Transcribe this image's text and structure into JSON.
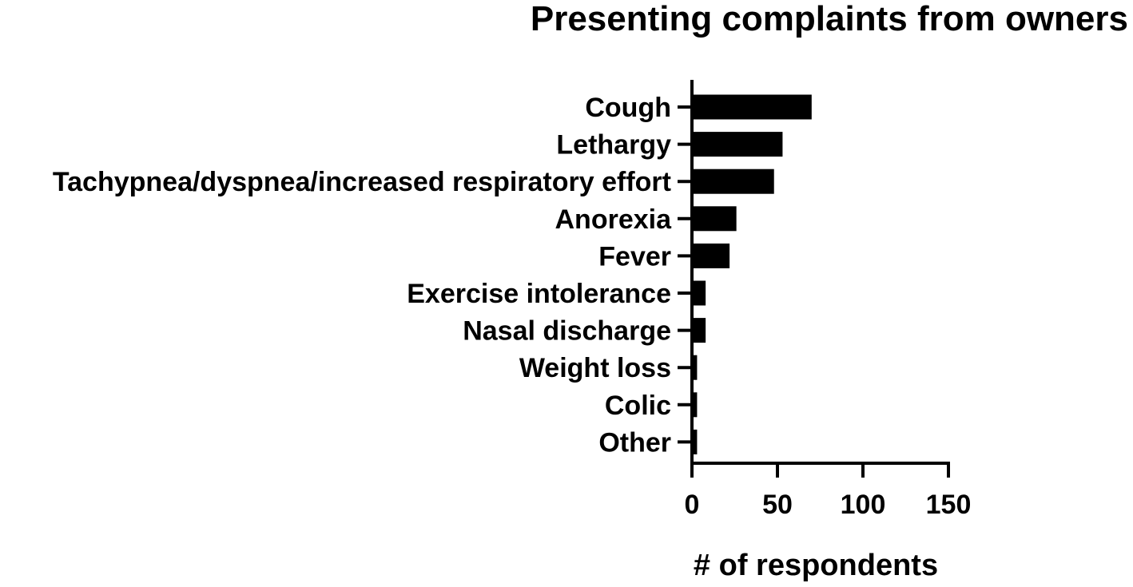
{
  "chart_data": {
    "type": "bar",
    "orientation": "horizontal",
    "title": "Presenting complaints from owners",
    "xlabel": "# of respondents",
    "ylabel": "",
    "categories": [
      "Cough",
      "Lethargy",
      "Tachypnea/dyspnea/increased respiratory effort",
      "Anorexia",
      "Fever",
      "Exercise intolerance",
      "Nasal discharge",
      "Weight loss",
      "Colic",
      "Other"
    ],
    "values": [
      70,
      53,
      48,
      26,
      22,
      8,
      8,
      3,
      3,
      3
    ],
    "xlim": [
      0,
      150
    ],
    "xticks": [
      0,
      50,
      100,
      150
    ],
    "xtick_labels": [
      "0",
      "50",
      "100",
      "150"
    ],
    "grid": false,
    "legend": "none",
    "bar_color": "#000000"
  }
}
